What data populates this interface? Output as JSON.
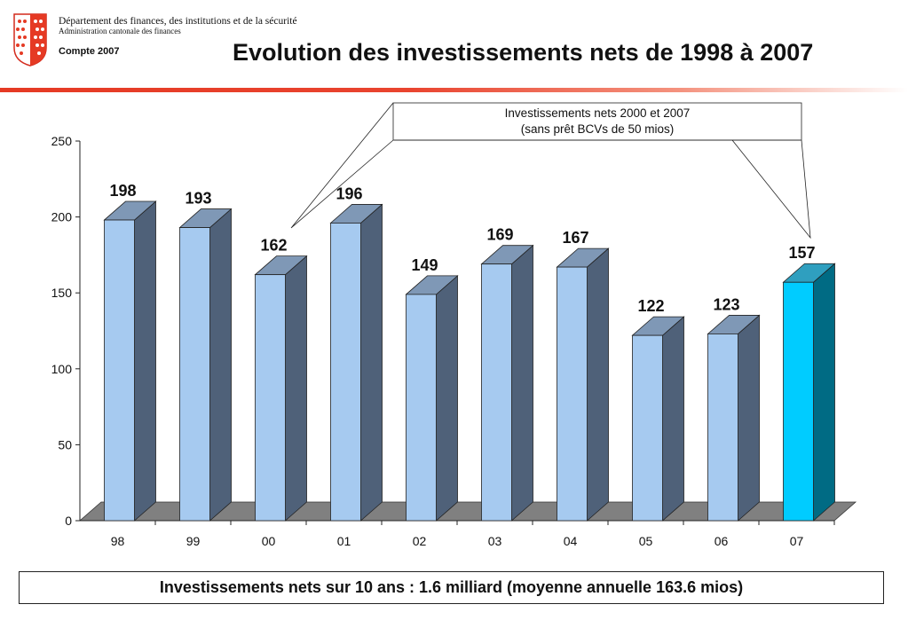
{
  "header": {
    "department": "Département des finances, des institutions et de la sécurité",
    "administration": "Administration cantonale des finances",
    "compte": "Compte 2007"
  },
  "callout": {
    "line1": "Investissements nets 2000 et 2007",
    "line2": "(sans prêt BCVs de 50 mios)"
  },
  "summary": "Investissements nets sur 10 ans : 1.6 milliard (moyenne annuelle 163.6 mios)",
  "colors": {
    "bar_front": "#a6caf0",
    "bar_side": "#4f6179",
    "bar_top": "#7f98b6",
    "highlight_front": "#00ccff",
    "highlight_side": "#006b84",
    "highlight_top": "#2f9fbf",
    "floor": "#808080",
    "accent_red": "#e53a24"
  },
  "chart_data": {
    "type": "bar",
    "style": "3d",
    "title": "Evolution des investissements nets de 1998 à 2007",
    "categories": [
      "98",
      "99",
      "00",
      "01",
      "02",
      "03",
      "04",
      "05",
      "06",
      "07"
    ],
    "values": [
      198,
      193,
      162,
      196,
      149,
      169,
      167,
      122,
      123,
      157
    ],
    "highlight_category": "07",
    "ylim": [
      0,
      250
    ],
    "yticks": [
      0,
      50,
      100,
      150,
      200,
      250
    ],
    "grid": false,
    "legend": "none"
  }
}
